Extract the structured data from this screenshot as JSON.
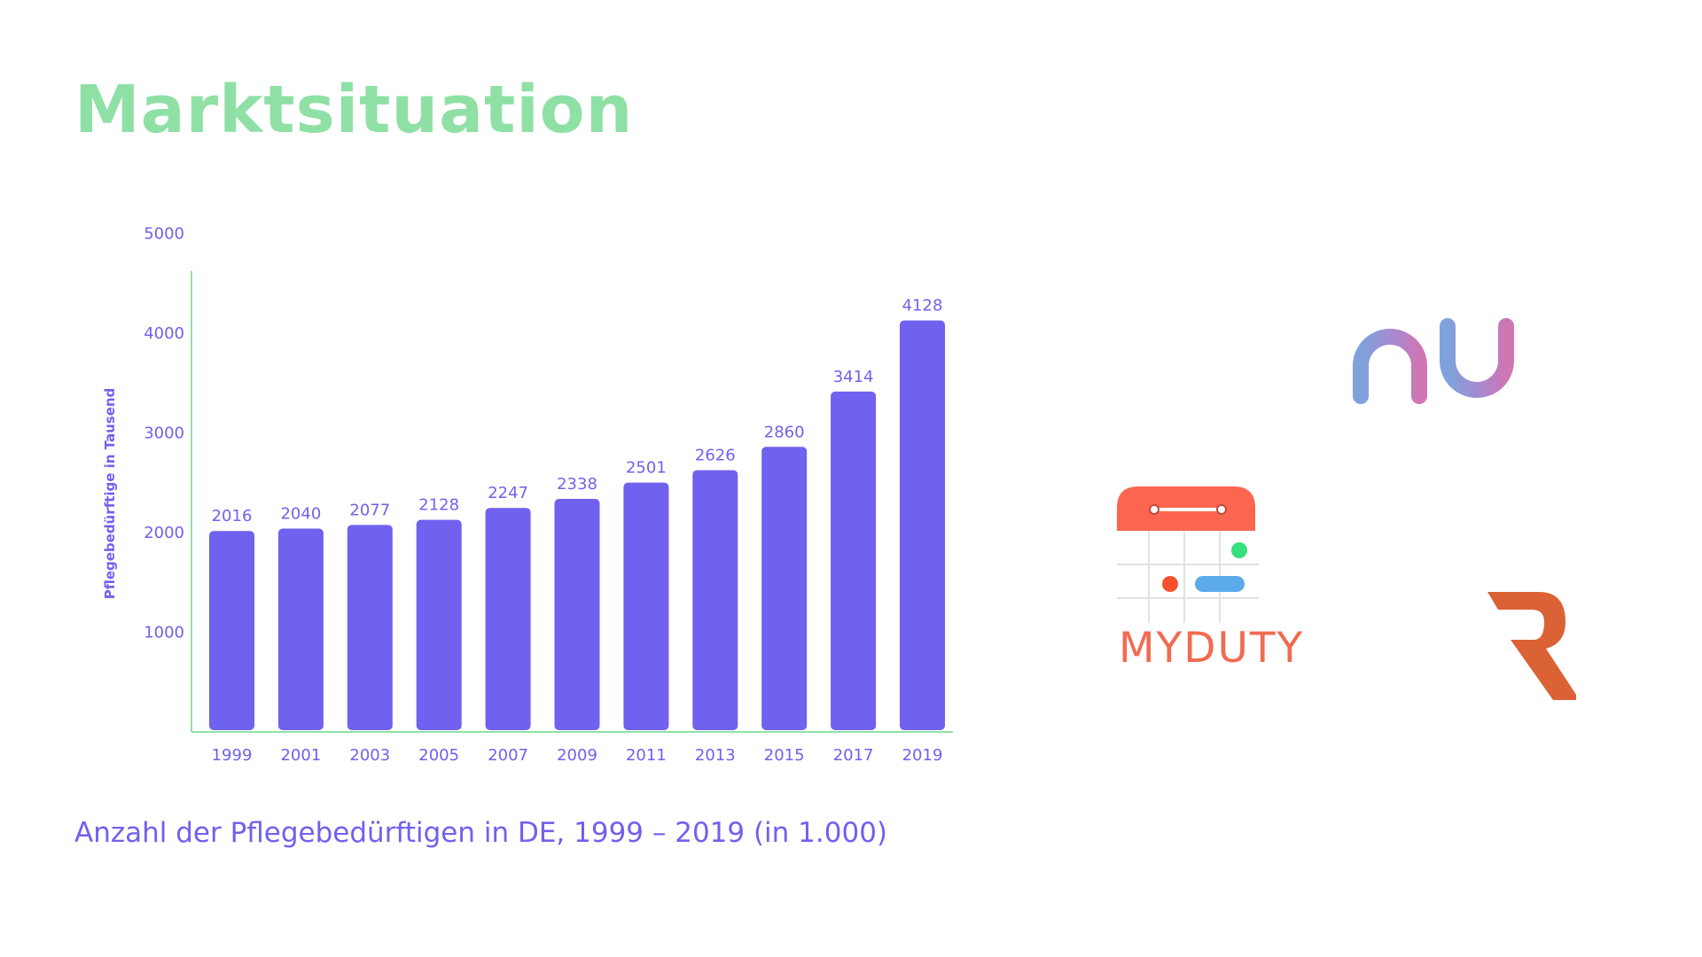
{
  "title": "Marktsituation",
  "caption": "Anzahl der Pflegebedürftigen in DE, 1999 – 2019 (in 1.000)",
  "chart_data": {
    "type": "bar",
    "title": "",
    "xlabel": "",
    "ylabel": "Pflegebedürftige in Tausend",
    "categories": [
      "1999",
      "2001",
      "2003",
      "2005",
      "2007",
      "2009",
      "2011",
      "2013",
      "2015",
      "2017",
      "2019"
    ],
    "values": [
      2016,
      2040,
      2077,
      2128,
      2247,
      2338,
      2501,
      2626,
      2860,
      3414,
      4128
    ],
    "ylim": [
      0,
      5000
    ],
    "yticks": [
      1000,
      2000,
      3000,
      4000,
      5000
    ],
    "grid": false,
    "legend": "none",
    "bar_color": "#7061ee",
    "axis_color": "#8fe0a5"
  },
  "logos": {
    "nui": {
      "name": "nui-logo"
    },
    "myduty": {
      "name": "myduty-logo",
      "text": "MYDUTY"
    },
    "r": {
      "name": "r-logo"
    }
  },
  "colors": {
    "title": "#8fe0a5",
    "accent": "#7061ee",
    "myduty_orange": "#f26a4f",
    "r_orange": "#db6234"
  }
}
